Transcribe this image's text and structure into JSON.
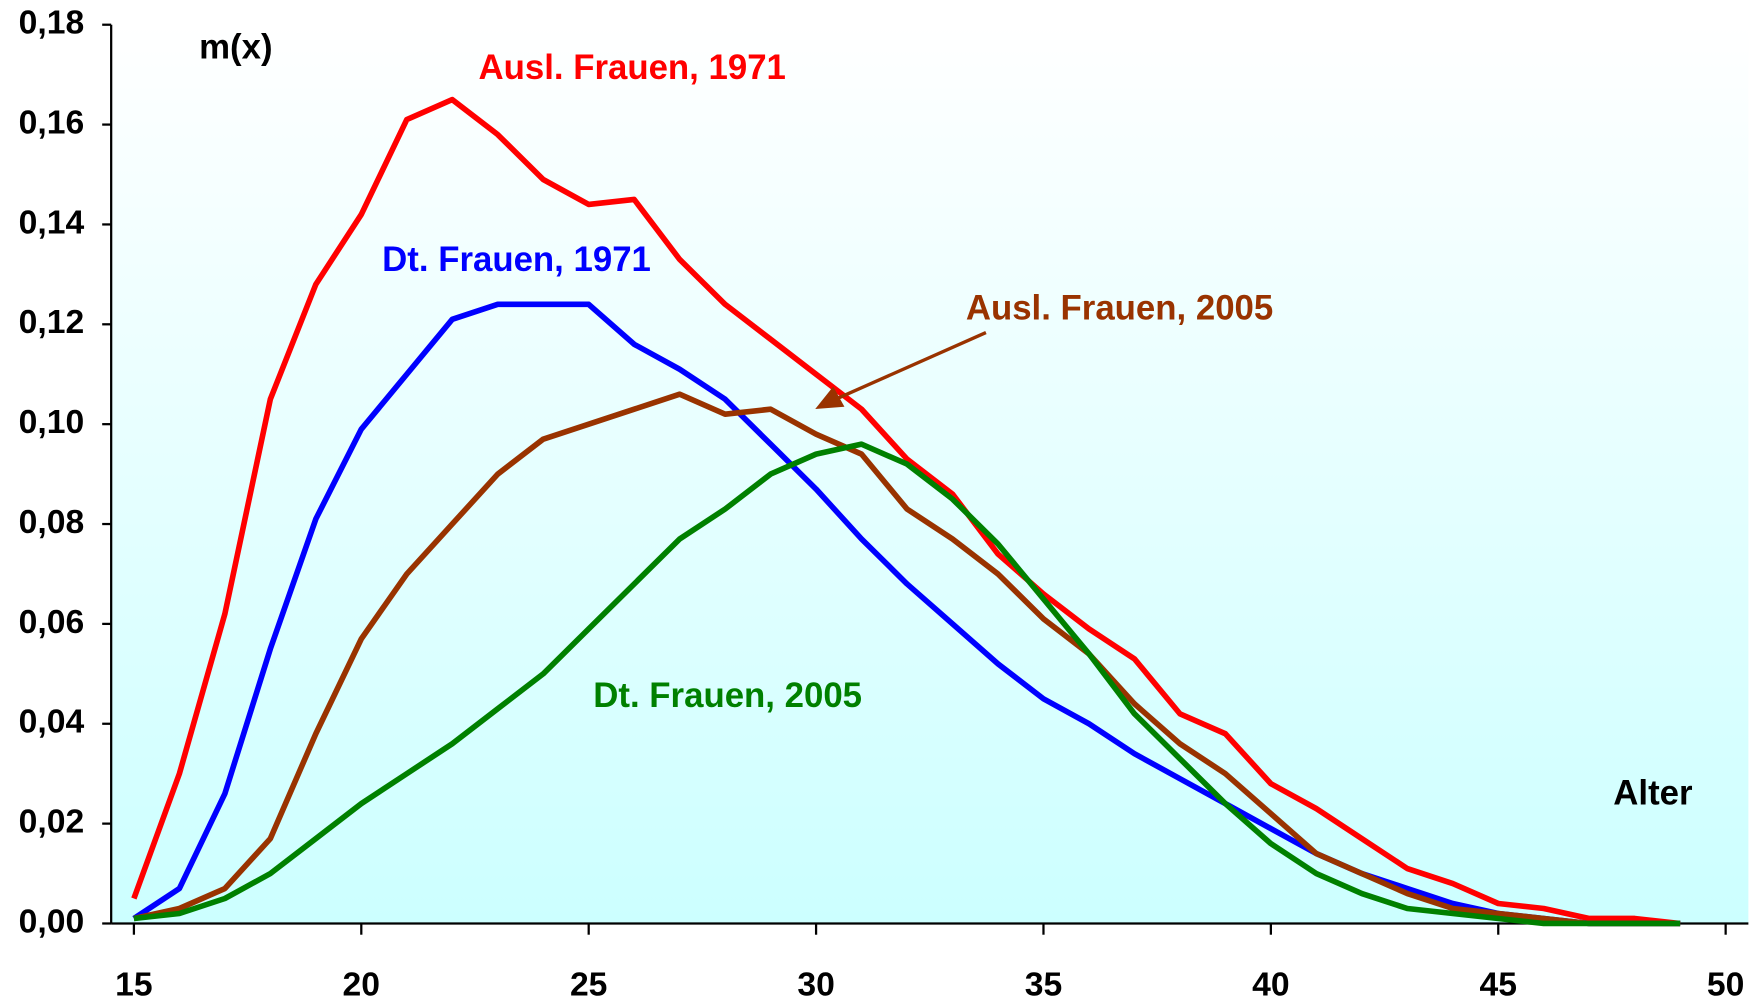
{
  "chart_data": {
    "type": "line",
    "x_label": "Alter",
    "y_label": "m(x)",
    "x": [
      15,
      16,
      17,
      18,
      19,
      20,
      21,
      22,
      23,
      24,
      25,
      26,
      27,
      28,
      29,
      30,
      31,
      32,
      33,
      34,
      35,
      36,
      37,
      38,
      39,
      40,
      41,
      42,
      43,
      44,
      45,
      46,
      47,
      48,
      49
    ],
    "series": [
      {
        "name": "Ausl. Frauen, 1971",
        "color": "#ff0000",
        "values": [
          0.005,
          0.03,
          0.062,
          0.105,
          0.128,
          0.142,
          0.161,
          0.165,
          0.158,
          0.149,
          0.144,
          0.145,
          0.133,
          0.124,
          0.117,
          0.11,
          0.103,
          0.093,
          0.086,
          0.074,
          0.066,
          0.059,
          0.053,
          0.042,
          0.038,
          0.028,
          0.023,
          0.017,
          0.011,
          0.008,
          0.004,
          0.003,
          0.001,
          0.001,
          0.0
        ]
      },
      {
        "name": "Dt. Frauen, 1971",
        "color": "#0000ff",
        "values": [
          0.001,
          0.007,
          0.026,
          0.055,
          0.081,
          0.099,
          0.11,
          0.121,
          0.124,
          0.124,
          0.124,
          0.116,
          0.111,
          0.105,
          0.096,
          0.087,
          0.077,
          0.068,
          0.06,
          0.052,
          0.045,
          0.04,
          0.034,
          0.029,
          0.024,
          0.019,
          0.014,
          0.01,
          0.007,
          0.004,
          0.002,
          0.001,
          0.0,
          0.0,
          0.0
        ]
      },
      {
        "name": "Ausl. Frauen, 2005",
        "color": "#993300",
        "values": [
          0.001,
          0.003,
          0.007,
          0.017,
          0.038,
          0.057,
          0.07,
          0.08,
          0.09,
          0.097,
          0.1,
          0.103,
          0.106,
          0.102,
          0.103,
          0.098,
          0.094,
          0.083,
          0.077,
          0.07,
          0.061,
          0.054,
          0.044,
          0.036,
          0.03,
          0.022,
          0.014,
          0.01,
          0.006,
          0.003,
          0.002,
          0.001,
          0.0,
          0.0,
          0.0
        ]
      },
      {
        "name": "Dt. Frauen, 2005",
        "color": "#008000",
        "values": [
          0.001,
          0.002,
          0.005,
          0.01,
          0.017,
          0.024,
          0.03,
          0.036,
          0.043,
          0.05,
          0.059,
          0.068,
          0.077,
          0.083,
          0.09,
          0.094,
          0.096,
          0.092,
          0.085,
          0.076,
          0.065,
          0.054,
          0.042,
          0.033,
          0.024,
          0.016,
          0.01,
          0.006,
          0.003,
          0.002,
          0.001,
          0.0,
          0.0,
          0.0,
          0.0
        ]
      }
    ],
    "xlim": [
      14.5,
      50.5
    ],
    "xticks": [
      15,
      20,
      25,
      30,
      35,
      40,
      45,
      50
    ],
    "ylim": [
      0,
      0.18
    ],
    "yticks": [
      {
        "value": 0,
        "label": "0,00"
      },
      {
        "value": 0.02,
        "label": "0,02"
      },
      {
        "value": 0.04,
        "label": "0,04"
      },
      {
        "value": 0.06,
        "label": "0,06"
      },
      {
        "value": 0.08,
        "label": "0,08"
      },
      {
        "value": 0.1,
        "label": "0,10"
      },
      {
        "value": 0.12,
        "label": "0,12"
      },
      {
        "value": 0.14,
        "label": "0,14"
      },
      {
        "value": 0.16,
        "label": "0,16"
      },
      {
        "value": 0.18,
        "label": "0,18"
      }
    ]
  }
}
